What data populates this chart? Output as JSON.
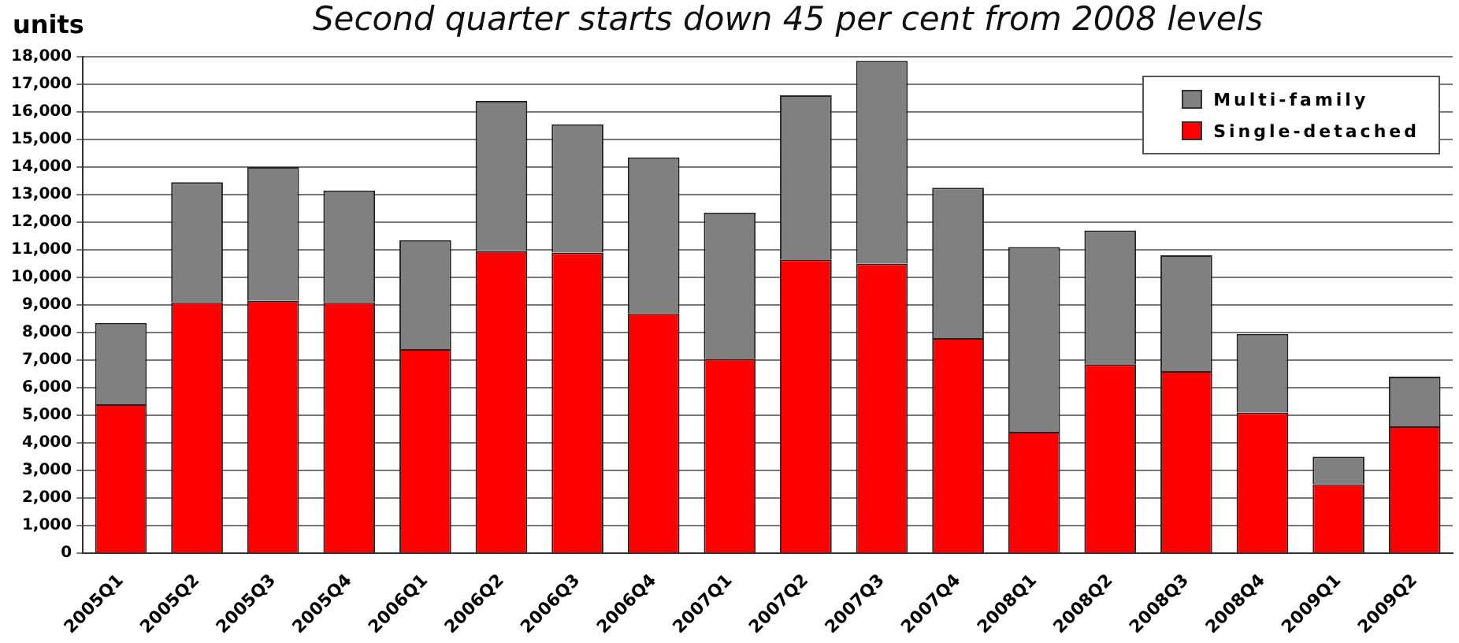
{
  "chart_data": {
    "type": "bar",
    "title": "Second quarter starts down 45 per cent from 2008 levels",
    "ylabel": "units",
    "categories": [
      "2005Q1",
      "2005Q2",
      "2005Q3",
      "2005Q4",
      "2006Q1",
      "2006Q2",
      "2006Q3",
      "2006Q4",
      "2007Q1",
      "2007Q2",
      "2007Q3",
      "2007Q4",
      "2008Q1",
      "2008Q2",
      "2008Q3",
      "2008Q4",
      "2009Q1",
      "2009Q2"
    ],
    "stacked": true,
    "series": [
      {
        "name": "Single-detached",
        "color": "#ff0000",
        "values": [
          5400,
          9100,
          9150,
          9100,
          7400,
          10950,
          10900,
          8700,
          7050,
          10650,
          10500,
          7800,
          4400,
          6850,
          6600,
          5100,
          2500,
          4600
        ]
      },
      {
        "name": "Multi-family",
        "color": "#808080",
        "values": [
          2950,
          4350,
          4850,
          4050,
          3950,
          5450,
          4650,
          5650,
          5300,
          5950,
          7350,
          5450,
          6700,
          4850,
          4200,
          2850,
          1000,
          1800
        ]
      }
    ],
    "ylim": [
      0,
      18000
    ],
    "yticks": [
      0,
      {
        "value": 1000,
        "label": "1,000"
      },
      {
        "value": 2000,
        "label": "2,000"
      },
      {
        "value": 3000,
        "label": "3,000"
      },
      {
        "value": 4000,
        "label": "4,000"
      },
      {
        "value": 5000,
        "label": "5,000"
      },
      {
        "value": 6000,
        "label": "6,000"
      },
      {
        "value": 7000,
        "label": "7,000"
      },
      {
        "value": 8000,
        "label": "8,000"
      },
      {
        "value": 9000,
        "label": "9,000"
      },
      {
        "value": 10000,
        "label": "10,000"
      },
      {
        "value": 11000,
        "label": "11,000"
      },
      {
        "value": 12000,
        "label": "12,000"
      },
      {
        "value": 13000,
        "label": "13,000"
      },
      {
        "value": 14000,
        "label": "14,000"
      },
      {
        "value": 15000,
        "label": "15,000"
      },
      {
        "value": 16000,
        "label": "16,000"
      },
      {
        "value": 17000,
        "label": "17,000"
      },
      {
        "value": 18000,
        "label": "18,000"
      }
    ],
    "grid": "y",
    "legend": "top right"
  }
}
